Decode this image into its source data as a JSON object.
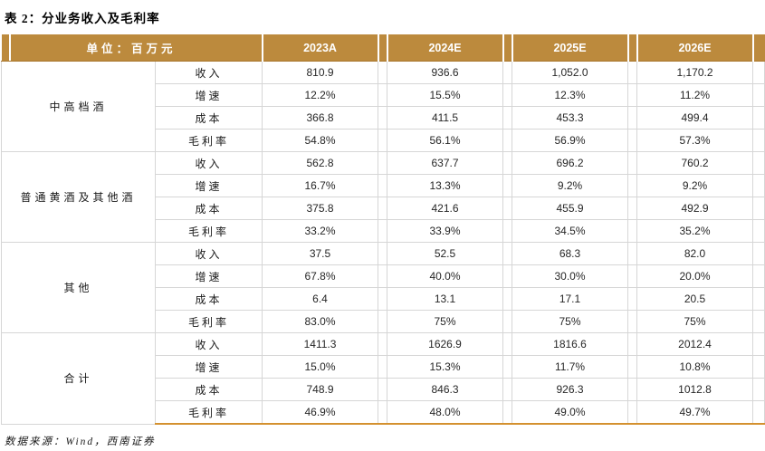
{
  "title": "表 2：分业务收入及毛利率",
  "table": {
    "unit_header": "单位：百万元",
    "year_columns": [
      "2023A",
      "2024E",
      "2025E",
      "2026E"
    ],
    "groups": [
      {
        "name": "中高档酒",
        "rows": [
          {
            "label": "收入",
            "values": [
              "810.9",
              "936.6",
              "1,052.0",
              "1,170.2"
            ]
          },
          {
            "label": "增速",
            "values": [
              "12.2%",
              "15.5%",
              "12.3%",
              "11.2%"
            ]
          },
          {
            "label": "成本",
            "values": [
              "366.8",
              "411.5",
              "453.3",
              "499.4"
            ]
          },
          {
            "label": "毛利率",
            "values": [
              "54.8%",
              "56.1%",
              "56.9%",
              "57.3%"
            ]
          }
        ]
      },
      {
        "name": "普通黄酒及其他酒",
        "rows": [
          {
            "label": "收入",
            "values": [
              "562.8",
              "637.7",
              "696.2",
              "760.2"
            ]
          },
          {
            "label": "增速",
            "values": [
              "16.7%",
              "13.3%",
              "9.2%",
              "9.2%"
            ]
          },
          {
            "label": "成本",
            "values": [
              "375.8",
              "421.6",
              "455.9",
              "492.9"
            ]
          },
          {
            "label": "毛利率",
            "values": [
              "33.2%",
              "33.9%",
              "34.5%",
              "35.2%"
            ]
          }
        ]
      },
      {
        "name": "其他",
        "rows": [
          {
            "label": "收入",
            "values": [
              "37.5",
              "52.5",
              "68.3",
              "82.0"
            ]
          },
          {
            "label": "增速",
            "values": [
              "67.8%",
              "40.0%",
              "30.0%",
              "20.0%"
            ]
          },
          {
            "label": "成本",
            "values": [
              "6.4",
              "13.1",
              "17.1",
              "20.5"
            ]
          },
          {
            "label": "毛利率",
            "values": [
              "83.0%",
              "75%",
              "75%",
              "75%"
            ]
          }
        ]
      },
      {
        "name": "合计",
        "rows": [
          {
            "label": "收入",
            "values": [
              "1411.3",
              "1626.9",
              "1816.6",
              "2012.4"
            ]
          },
          {
            "label": "增速",
            "values": [
              "15.0%",
              "15.3%",
              "11.7%",
              "10.8%"
            ]
          },
          {
            "label": "成本",
            "values": [
              "748.9",
              "846.3",
              "926.3",
              "1012.8"
            ]
          },
          {
            "label": "毛利率",
            "values": [
              "46.9%",
              "48.0%",
              "49.0%",
              "49.7%"
            ]
          }
        ]
      }
    ]
  },
  "footer": {
    "source": "数据来源：Wind，西南证券"
  },
  "colors": {
    "header_gold": "#BC8A3D",
    "bottom_rule_gold": "#D4912F",
    "grid_gray": "#D6D6D6"
  }
}
